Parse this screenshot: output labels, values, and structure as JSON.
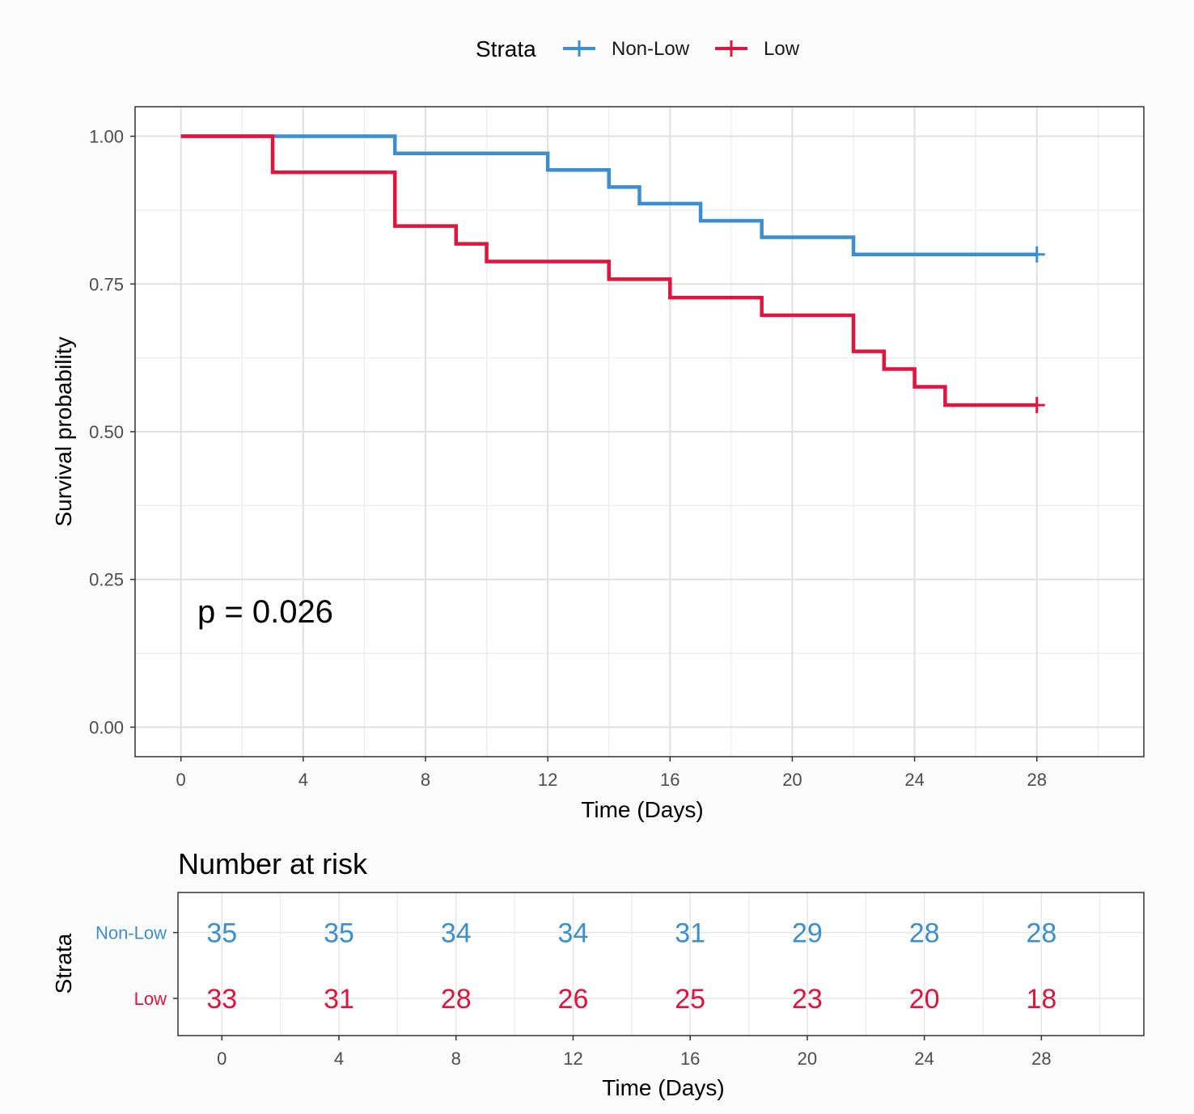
{
  "chart_data": [
    {
      "type": "line",
      "subtype": "kaplan-meier",
      "xlabel": "Time (Days)",
      "ylabel": "Survival probability",
      "xlim": [
        -1.5,
        31.5
      ],
      "ylim": [
        -0.05,
        1.05
      ],
      "x_ticks": [
        0,
        4,
        8,
        12,
        16,
        20,
        24,
        28
      ],
      "x_tick_labels": [
        "0",
        "4",
        "8",
        "12",
        "16",
        "20",
        "24",
        "28"
      ],
      "y_ticks": [
        0,
        0.25,
        0.5,
        0.75,
        1.0
      ],
      "y_tick_labels": [
        "0.00",
        "0.25",
        "0.50",
        "0.75",
        "1.00"
      ],
      "grid": true,
      "legend": {
        "title": "Strata",
        "placement": "top",
        "entries": [
          "Non-Low",
          "Low"
        ]
      },
      "annotation": "p = 0.026",
      "series": [
        {
          "name": "Non-Low",
          "color": "#3b8fd0",
          "steps": [
            {
              "x": 0,
              "y": 1.0
            },
            {
              "x": 7,
              "y": 0.971
            },
            {
              "x": 12,
              "y": 0.943
            },
            {
              "x": 14,
              "y": 0.914
            },
            {
              "x": 15,
              "y": 0.886
            },
            {
              "x": 17,
              "y": 0.857
            },
            {
              "x": 19,
              "y": 0.829
            },
            {
              "x": 22,
              "y": 0.8
            }
          ],
          "end_x": 28,
          "censor": [
            {
              "x": 28,
              "y": 0.8
            }
          ]
        },
        {
          "name": "Low",
          "color": "#e0143c",
          "steps": [
            {
              "x": 0,
              "y": 1.0
            },
            {
              "x": 3,
              "y": 0.939
            },
            {
              "x": 7,
              "y": 0.848
            },
            {
              "x": 9,
              "y": 0.818
            },
            {
              "x": 10,
              "y": 0.788
            },
            {
              "x": 14,
              "y": 0.758
            },
            {
              "x": 16,
              "y": 0.727
            },
            {
              "x": 19,
              "y": 0.697
            },
            {
              "x": 22,
              "y": 0.636
            },
            {
              "x": 23,
              "y": 0.606
            },
            {
              "x": 24,
              "y": 0.576
            },
            {
              "x": 25,
              "y": 0.545
            }
          ],
          "end_x": 28,
          "censor": [
            {
              "x": 28,
              "y": 0.545
            }
          ]
        }
      ]
    },
    {
      "type": "table",
      "title": "Number at risk",
      "xlabel": "Time (Days)",
      "ylabel": "Strata",
      "xlim": [
        -1.5,
        31.5
      ],
      "x_ticks": [
        0,
        4,
        8,
        12,
        16,
        20,
        24,
        28
      ],
      "x_tick_labels": [
        "0",
        "4",
        "8",
        "12",
        "16",
        "20",
        "24",
        "28"
      ],
      "rows": [
        {
          "name": "Non-Low",
          "color": "#3b8fd0",
          "values": [
            35,
            35,
            34,
            34,
            31,
            29,
            28,
            28
          ]
        },
        {
          "name": "Low",
          "color": "#e0143c",
          "values": [
            33,
            31,
            28,
            26,
            25,
            23,
            20,
            18
          ]
        }
      ]
    }
  ]
}
